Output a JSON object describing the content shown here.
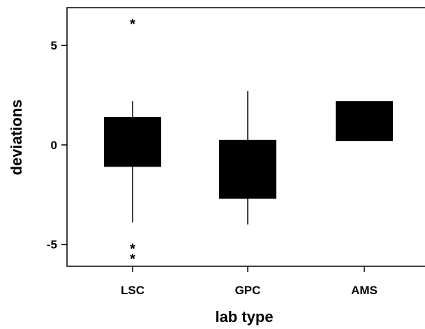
{
  "chart_data": {
    "type": "box",
    "title": "",
    "xlabel": "lab type",
    "ylabel": "deviations",
    "categories": [
      "LSC",
      "GPC",
      "AMS"
    ],
    "ylim": [
      -6.1,
      6.9
    ],
    "yticks": [
      -5,
      0,
      5
    ],
    "ytick_labels": [
      "-5",
      "0",
      "5"
    ],
    "grid": false,
    "legend": "none",
    "box_color": "#000000",
    "outlier_symbol": "*",
    "boxes": [
      {
        "category": "LSC",
        "whisker_low": -3.9,
        "q1": -1.1,
        "q3": 1.4,
        "whisker_high": 2.2,
        "outliers": [
          6.3,
          -5.0,
          -5.5
        ]
      },
      {
        "category": "GPC",
        "whisker_low": -4.0,
        "q1": -2.7,
        "q3": 0.25,
        "whisker_high": 2.7,
        "outliers": []
      },
      {
        "category": "AMS",
        "whisker_low": 0.2,
        "q1": 0.2,
        "q3": 2.2,
        "whisker_high": 2.2,
        "outliers": []
      }
    ]
  }
}
